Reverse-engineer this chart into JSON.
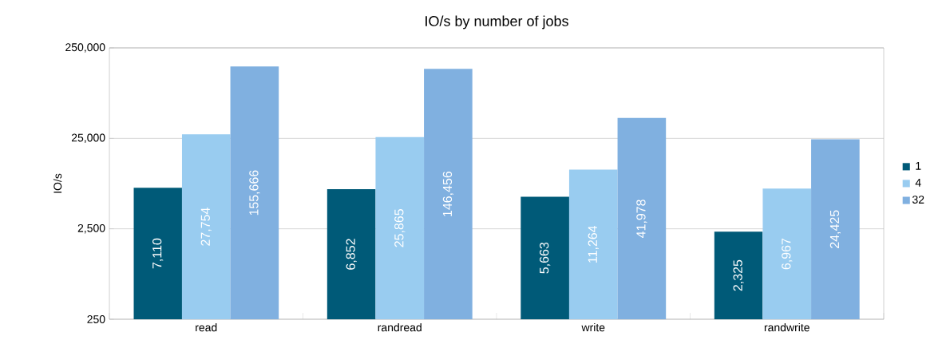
{
  "chart_data": {
    "type": "bar",
    "title": "IO/s by number of jobs",
    "ylabel": "IO/s",
    "categories": [
      "read",
      "randread",
      "write",
      "randwrite"
    ],
    "series": [
      {
        "name": "1",
        "color": "#005a78",
        "values": [
          7110,
          6852,
          5663,
          2325
        ],
        "value_labels": [
          "7,110",
          "6,852",
          "5,663",
          "2,325"
        ]
      },
      {
        "name": "4",
        "color": "#99ccf0",
        "values": [
          27754,
          25865,
          11264,
          6967
        ],
        "value_labels": [
          "27,754",
          "25,865",
          "11,264",
          "6,967"
        ]
      },
      {
        "name": "32",
        "color": "#80b0e0",
        "values": [
          155666,
          146456,
          41978,
          24425
        ],
        "value_labels": [
          "155,666",
          "146,456",
          "41,978",
          "24,425"
        ]
      }
    ],
    "log": "y",
    "ylim": [
      250,
      250000
    ],
    "yticks": [
      {
        "value": 250,
        "label": "250"
      },
      {
        "value": 2500,
        "label": "2,500"
      },
      {
        "value": 25000,
        "label": "25,000"
      },
      {
        "value": 250000,
        "label": "250,000"
      }
    ],
    "grid": "y",
    "legend": "right"
  }
}
